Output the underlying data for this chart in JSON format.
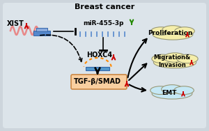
{
  "title": "Breast cancer",
  "xist_label": "XIST",
  "mir_label": "miR-455-3p",
  "hoxc4_label": "HOXC4",
  "tgf_label": "TGF-β/SMAD",
  "prolif_label": "Proliferation",
  "migr_label": "Migration&\nInvasion",
  "emt_label": "EMT",
  "up_arrow_color": "#cc0000",
  "down_arrow_color": "#228800",
  "box_color_tgf": "#f9cfa0",
  "cloud_yellow": "#f5eeaa",
  "cloud_blue": "#c5e8f5",
  "figsize": [
    3.0,
    1.88
  ],
  "dpi": 100,
  "bg_outer": "#b8c4cc",
  "bg_inner": "#d4dce4"
}
